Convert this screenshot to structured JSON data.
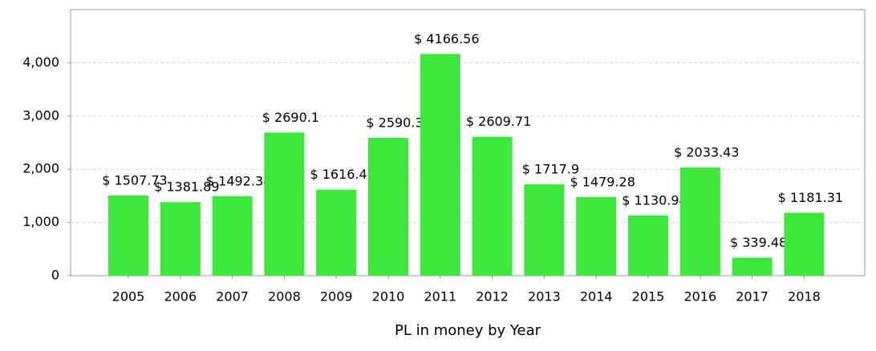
{
  "chart_data": {
    "type": "bar",
    "x_label": "PL in money by Year",
    "categories": [
      "2005",
      "2006",
      "2007",
      "2008",
      "2009",
      "2010",
      "2011",
      "2012",
      "2013",
      "2014",
      "2015",
      "2016",
      "2017",
      "2018"
    ],
    "values": [
      1507.73,
      1381.89,
      1492.34,
      2690.1,
      1616.42,
      2590.3,
      4166.56,
      2609.71,
      1717.9,
      1479.28,
      1130.94,
      2033.43,
      339.48,
      1181.31
    ],
    "value_labels": [
      "$ 1507.73",
      "$ 1381.89",
      "$ 1492.34",
      "$ 2690.1",
      "$ 1616.42",
      "$ 2590.3",
      "$ 4166.56",
      "$ 2609.71",
      "$ 1717.9",
      "$ 1479.28",
      "$ 1130.94",
      "$ 2033.43",
      "$ 339.48",
      "$ 1181.31"
    ],
    "color": "#3de83d",
    "ylim": [
      0,
      5000
    ],
    "yticks": [
      0,
      {
        "value": 1000,
        "label": "1,000"
      },
      {
        "value": 2000,
        "label": "2,000"
      },
      {
        "value": 3000,
        "label": "3,000"
      },
      {
        "value": 4000,
        "label": "4,000"
      }
    ],
    "grid": true
  }
}
